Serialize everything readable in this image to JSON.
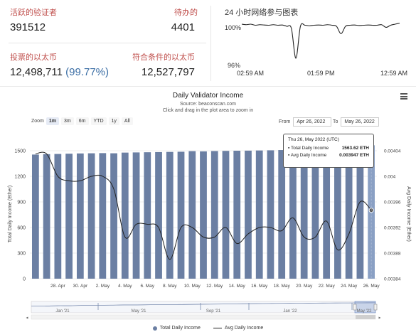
{
  "stats": {
    "active_validators_label": "活跃的验证者",
    "active_validators_value": "391512",
    "pending_label": "待办的",
    "pending_value": "4401",
    "staked_eth_label": "投票的以太币",
    "staked_eth_value": "12,498,711",
    "staked_eth_pct": "(99.77%)",
    "eligible_eth_label": "符合条件的以太币",
    "eligible_eth_value": "12,527,797"
  },
  "participation": {
    "title": "24 小时网络参与图表",
    "y_top": "100%",
    "y_bottom": "96%",
    "x_labels": [
      "02:59 AM",
      "01:59 PM",
      "12:59 AM"
    ],
    "values": [
      99.8,
      99.75,
      99.8,
      99.7,
      99.75,
      99.72,
      99.7,
      99.75,
      99.7,
      99.72,
      99.6,
      99.4,
      96.6,
      99.6,
      99.7,
      99.65,
      99.7,
      99.72,
      99.7,
      99.75,
      99.7,
      99.6,
      98.9,
      99.6,
      99.7,
      99.72,
      99.68,
      99.7,
      99.72,
      99.7,
      99.7,
      99.75,
      99.5,
      99.7,
      99.8,
      99.9
    ]
  },
  "chart_header": {
    "title": "Daily Validator Income",
    "subtitle": "Source: beaconscan.com",
    "hint": "Click and drag in the plot area to zoom in",
    "menu_icon": "hamburger-menu-icon"
  },
  "controls": {
    "zoom_label": "Zoom",
    "zoom_options": [
      "1m",
      "3m",
      "6m",
      "YTD",
      "1y",
      "All"
    ],
    "zoom_selected": "1m",
    "from_label": "From",
    "from_value": "Apr 26, 2022",
    "to_label": "To",
    "to_value": "May 26, 2022"
  },
  "tooltip": {
    "date": "Thu 26, May 2022 (UTC)",
    "total_label": "Total Daily Income",
    "total_value": "1563.62 ETH",
    "avg_label": "Avg Daily Income",
    "avg_value": "0.003947 ETH"
  },
  "legend": {
    "total": "Total Daily Income",
    "avg": "Avg Daily Income"
  },
  "colors": {
    "bar": "#6b7fa3",
    "bar_highlight": "#8aa0c4",
    "line": "#222222",
    "label_red": "#c0504d",
    "pct_blue": "#3b6ea5"
  },
  "chart_data": {
    "type": "bar",
    "title": "Daily Validator Income",
    "xlabel": "",
    "ylabel": "Total Daily Income (Ether)",
    "y2label": "Avg Daily Income (Ether)",
    "ylim": [
      0,
      1500
    ],
    "y2lim": [
      0.00384,
      0.00404
    ],
    "yticks": [
      0,
      300,
      600,
      900,
      1200,
      1500
    ],
    "y2ticks": [
      "0.00384",
      "0.00388",
      "0.00392",
      "0.00396",
      "0.004",
      "0.00404"
    ],
    "xticks": [
      "28. Apr",
      "30. Apr",
      "2. May",
      "4. May",
      "6. May",
      "8. May",
      "10. May",
      "12. May",
      "14. May",
      "16. May",
      "18. May",
      "20. May",
      "22. May",
      "24. May",
      "26. May"
    ],
    "x": [
      "Apr 26",
      "Apr 27",
      "Apr 28",
      "Apr 29",
      "Apr 30",
      "May 1",
      "May 2",
      "May 3",
      "May 4",
      "May 5",
      "May 6",
      "May 7",
      "May 8",
      "May 9",
      "May 10",
      "May 11",
      "May 12",
      "May 13",
      "May 14",
      "May 15",
      "May 16",
      "May 17",
      "May 18",
      "May 19",
      "May 20",
      "May 21",
      "May 22",
      "May 23",
      "May 24",
      "May 25",
      "May 26"
    ],
    "series": [
      {
        "name": "Total Daily Income",
        "type": "bar",
        "values": [
          1455,
          1460,
          1462,
          1465,
          1468,
          1470,
          1472,
          1470,
          1478,
          1480,
          1482,
          1484,
          1486,
          1488,
          1495,
          1492,
          1496,
          1498,
          1500,
          1501,
          1503,
          1505,
          1508,
          1510,
          1512,
          1514,
          1516,
          1519,
          1521,
          1525,
          1563.62
        ]
      },
      {
        "name": "Avg Daily Income",
        "type": "line",
        "values": [
          0.004035,
          0.004035,
          0.004,
          0.003993,
          0.003993,
          0.004,
          0.004,
          0.00398,
          0.003905,
          0.003925,
          0.003925,
          0.00392,
          0.00387,
          0.00392,
          0.00392,
          0.003905,
          0.003905,
          0.00392,
          0.003895,
          0.00391,
          0.00392,
          0.00392,
          0.003915,
          0.003935,
          0.003905,
          0.003905,
          0.00393,
          0.003885,
          0.00391,
          0.00396,
          0.003947
        ]
      }
    ],
    "navigator": {
      "labels": [
        "Jan '21",
        "May '21",
        "Sep '21",
        "Jan '22",
        "May '22"
      ]
    }
  }
}
